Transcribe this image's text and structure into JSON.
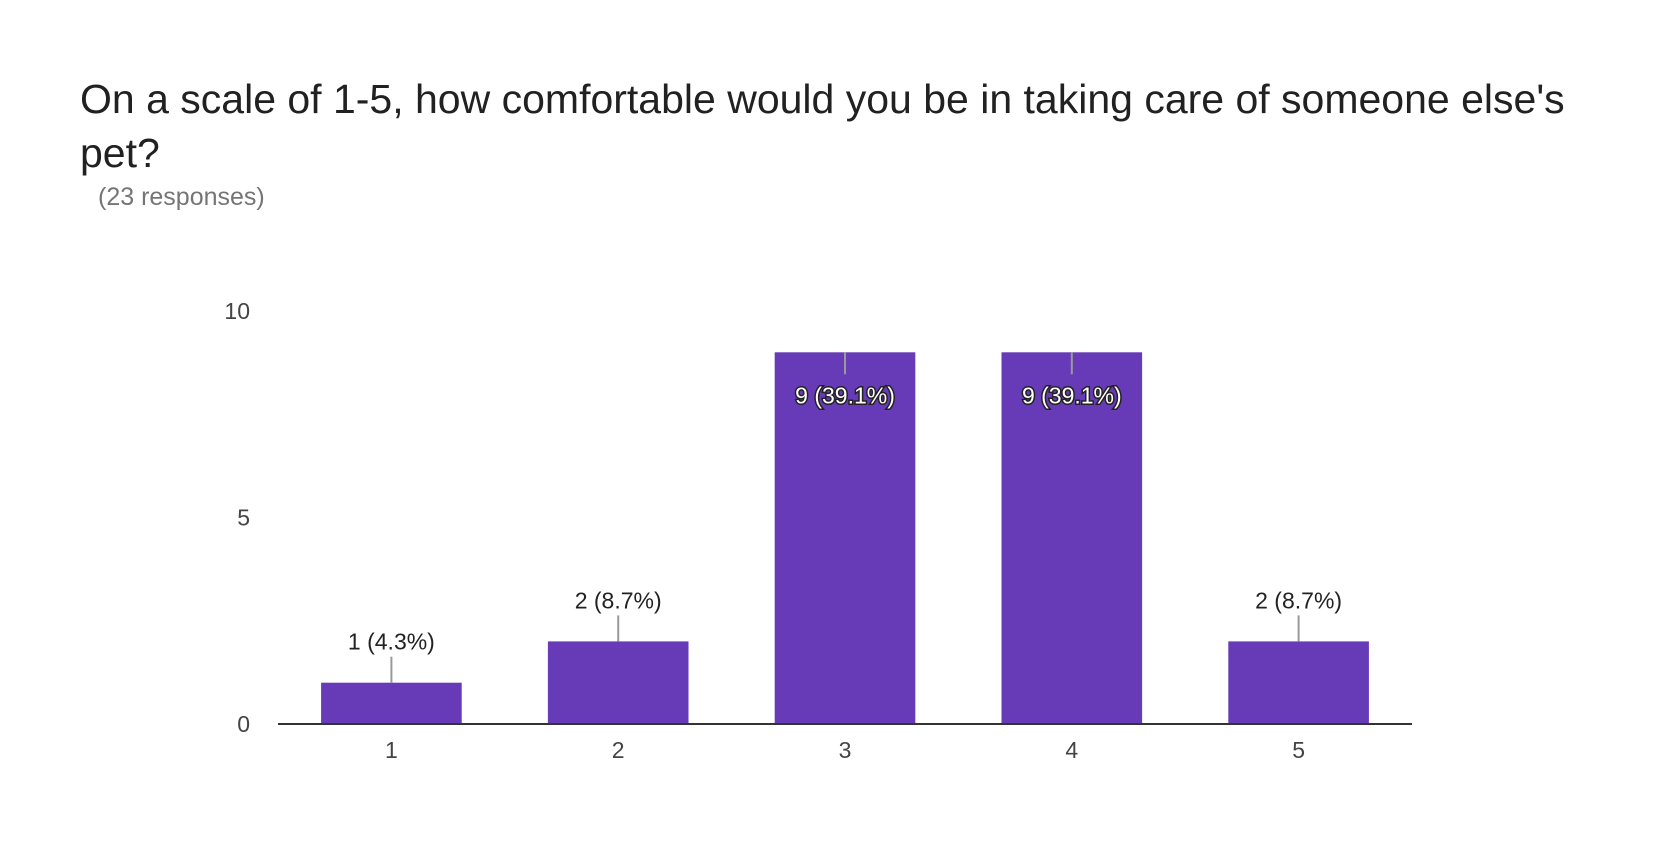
{
  "question": {
    "title": "On a scale of 1-5, how comfortable would you be in taking care of someone else's pet?",
    "responses": "(23 responses)"
  },
  "colors": {
    "bar": "#673ab7",
    "axis": "#333333",
    "leader": "#999999"
  },
  "chart_data": {
    "type": "bar",
    "categories": [
      "1",
      "2",
      "3",
      "4",
      "5"
    ],
    "values": [
      1,
      2,
      9,
      9,
      2
    ],
    "data_labels": [
      "1 (4.3%)",
      "2 (8.7%)",
      "9 (39.1%)",
      "9 (39.1%)",
      "2 (8.7%)"
    ],
    "yticks": [
      0,
      5,
      10
    ],
    "ylim": [
      0,
      10
    ],
    "grid": false,
    "legend": "none"
  }
}
